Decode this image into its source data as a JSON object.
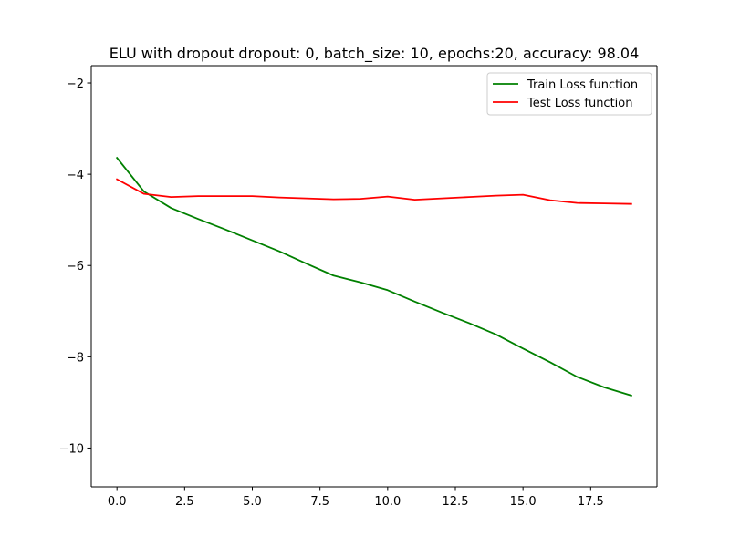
{
  "chart_data": {
    "type": "line",
    "title": "ELU with dropout dropout: 0, batch_size: 10, epochs:20, accuracy: 98.04",
    "xlabel": "",
    "ylabel": "",
    "xlim": [
      -0.95,
      19.95
    ],
    "ylim": [
      -10.85,
      -1.62
    ],
    "xticks": [
      0.0,
      2.5,
      5.0,
      7.5,
      10.0,
      12.5,
      15.0,
      17.5
    ],
    "xtick_labels": [
      "0.0",
      "2.5",
      "5.0",
      "7.5",
      "10.0",
      "12.5",
      "15.0",
      "17.5"
    ],
    "yticks": [
      -2,
      -4,
      -6,
      -8,
      -10
    ],
    "ytick_labels": [
      "−2",
      "−4",
      "−6",
      "−8",
      "−10"
    ],
    "grid": false,
    "legend_position": "top-right",
    "x": [
      0,
      1,
      2,
      3,
      4,
      5,
      6,
      7,
      8,
      9,
      10,
      11,
      12,
      13,
      14,
      15,
      16,
      17,
      18,
      19
    ],
    "series": [
      {
        "name": "Train Loss function",
        "color": "#008000",
        "values": [
          -3.64,
          -4.38,
          -4.74,
          -4.98,
          -5.21,
          -5.45,
          -5.69,
          -5.96,
          -6.22,
          -6.37,
          -6.54,
          -6.79,
          -7.03,
          -7.26,
          -7.51,
          -7.82,
          -8.12,
          -8.44,
          -8.67,
          -8.85
        ]
      },
      {
        "name": "Test Loss function",
        "color": "#ff0000",
        "values": [
          -4.11,
          -4.43,
          -4.5,
          -4.48,
          -4.48,
          -4.48,
          -4.51,
          -4.53,
          -4.55,
          -4.54,
          -4.49,
          -4.56,
          -4.53,
          -4.5,
          -4.47,
          -4.45,
          -4.57,
          -4.63,
          -4.64,
          -4.65
        ]
      }
    ]
  }
}
